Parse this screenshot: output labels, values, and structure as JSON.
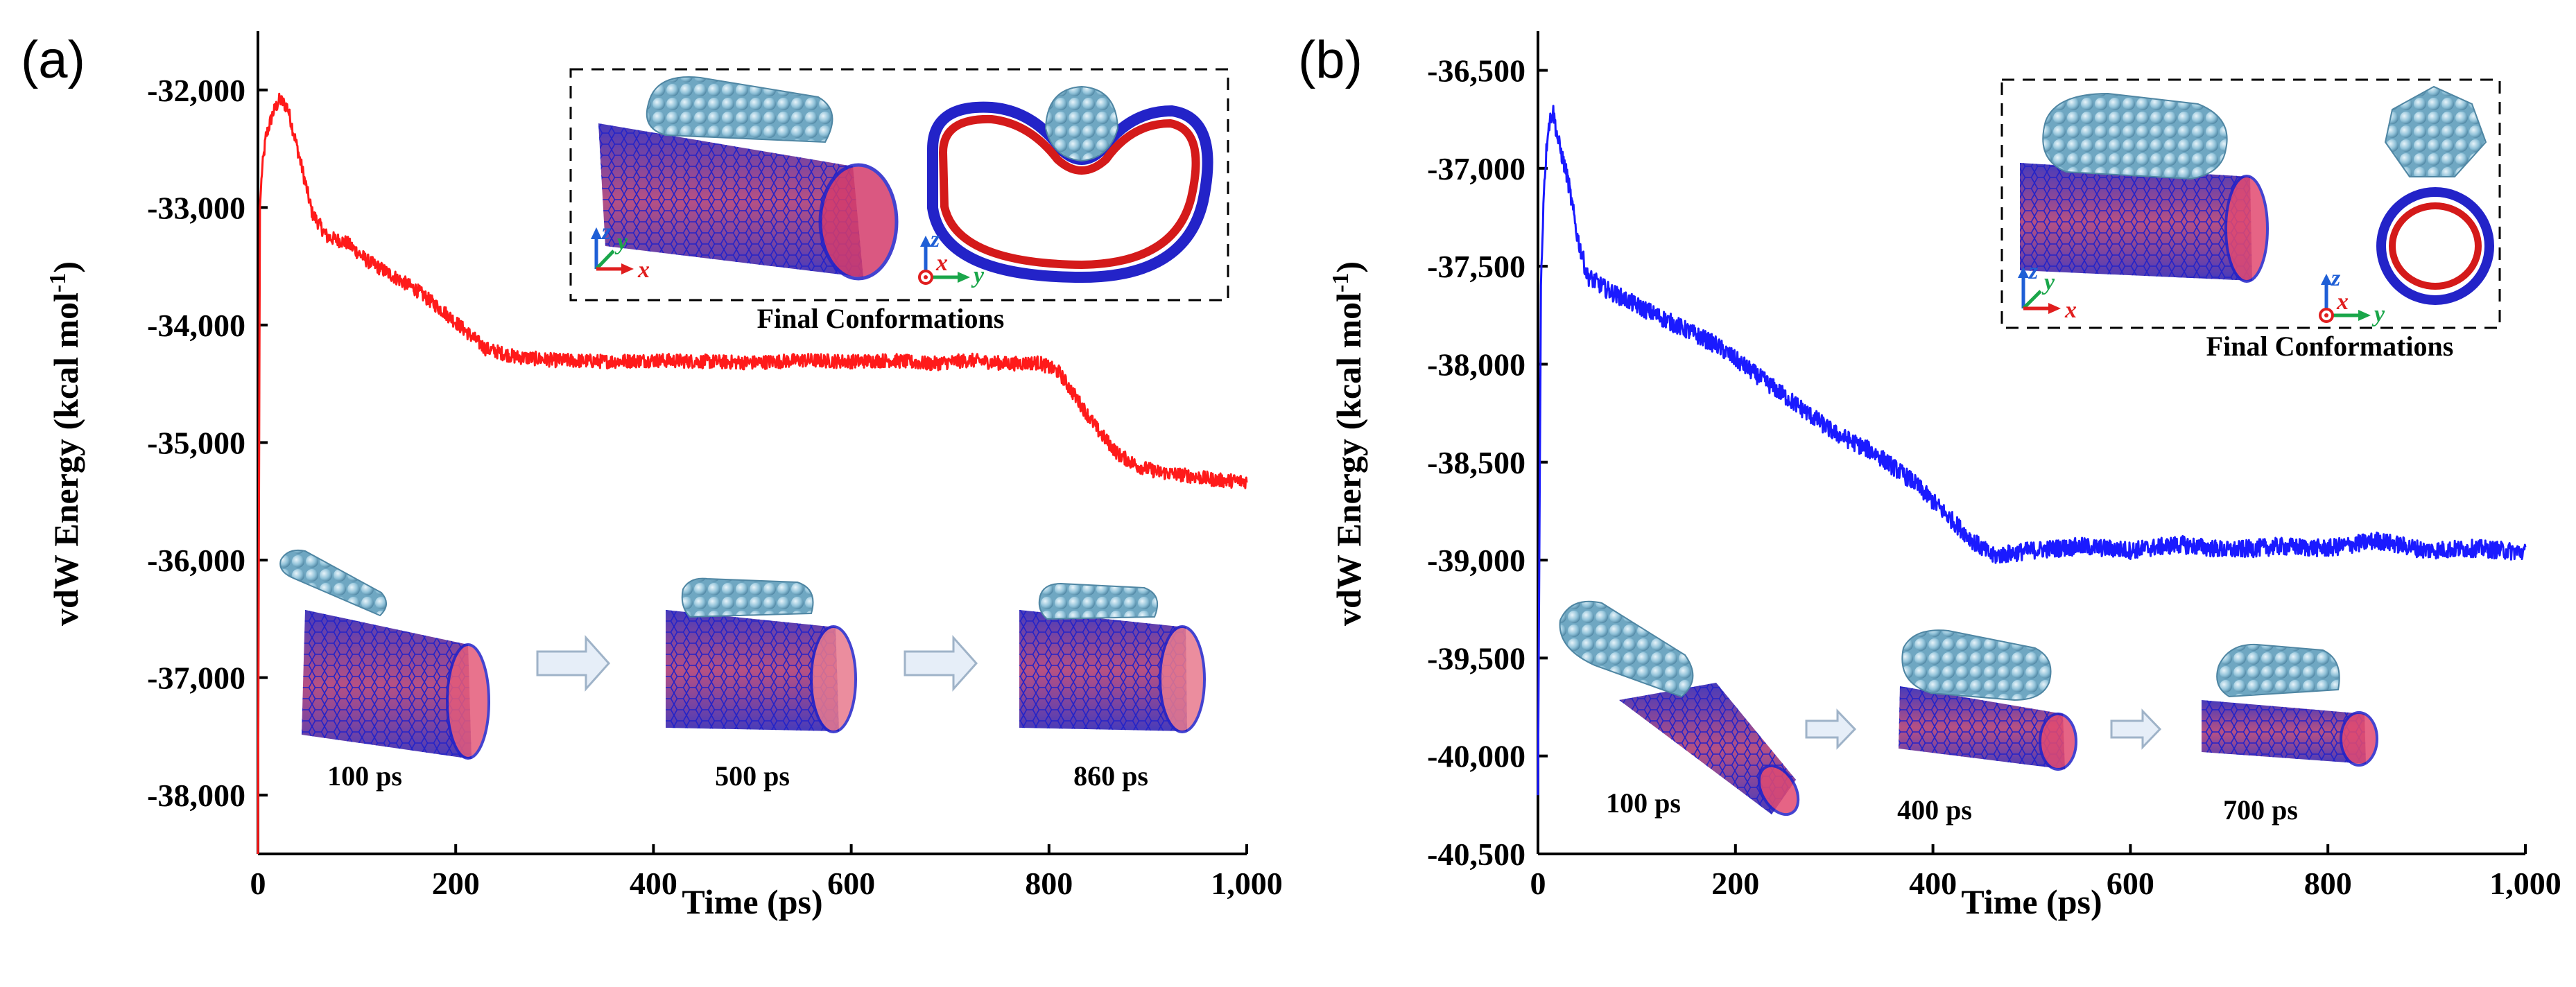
{
  "chart_data": [
    {
      "type": "line",
      "panel": "(a)",
      "xlabel": "Time (ps)",
      "ylabel": "vdW Energy (kcal mol",
      "ylabel_sup": "-1",
      "ylabel_close": ")",
      "xlim": [
        0,
        1000
      ],
      "ylim": [
        -38500,
        -31500
      ],
      "xticks": [
        0,
        200,
        400,
        600,
        800,
        1000
      ],
      "xtick_labels": [
        "0",
        "200",
        "400",
        "600",
        "800",
        "1,000"
      ],
      "yticks": [
        -38000,
        -37000,
        -36000,
        -35000,
        -34000,
        -33000,
        -32000
      ],
      "ytick_labels": [
        "-38,000",
        "-37,000",
        "-36,000",
        "-35,000",
        "-34,000",
        "-33,000",
        "-32,000"
      ],
      "series": [
        {
          "name": "vdW energy",
          "color": "#ff1a1a",
          "noise": 60,
          "x": [
            0,
            2,
            4,
            8,
            15,
            22,
            30,
            40,
            55,
            70,
            90,
            110,
            130,
            160,
            190,
            210,
            230,
            260,
            300,
            350,
            400,
            450,
            500,
            550,
            600,
            640,
            680,
            720,
            760,
            790,
            810,
            830,
            850,
            870,
            890,
            910,
            940,
            970,
            1000
          ],
          "y": [
            -38500,
            -33000,
            -32700,
            -32400,
            -32200,
            -32080,
            -32150,
            -32500,
            -33050,
            -33250,
            -33300,
            -33450,
            -33550,
            -33700,
            -33900,
            -34050,
            -34200,
            -34270,
            -34300,
            -34310,
            -34300,
            -34310,
            -34320,
            -34300,
            -34310,
            -34300,
            -34330,
            -34300,
            -34330,
            -34320,
            -34400,
            -34650,
            -34900,
            -35100,
            -35200,
            -35250,
            -35280,
            -35320,
            -35330
          ]
        }
      ],
      "inset": {
        "caption": "Final Conformations",
        "axes_left": [
          "z",
          "y",
          "x"
        ],
        "axes_right": [
          "z",
          "x",
          "y"
        ]
      },
      "snapshots": [
        "100 ps",
        "500 ps",
        "860 ps"
      ]
    },
    {
      "type": "line",
      "panel": "(b)",
      "xlabel": "Time (ps)",
      "ylabel": "vdW Energy (kcal mol",
      "ylabel_sup": "-1",
      "ylabel_close": ")",
      "xlim": [
        0,
        1000
      ],
      "ylim": [
        -40500,
        -36300
      ],
      "xticks": [
        0,
        200,
        400,
        600,
        800,
        1000
      ],
      "xtick_labels": [
        "0",
        "200",
        "400",
        "600",
        "800",
        "1,000"
      ],
      "yticks": [
        -40500,
        -40000,
        -39500,
        -39000,
        -38500,
        -38000,
        -37500,
        -37000,
        -36500
      ],
      "ytick_labels": [
        "-40,500",
        "-40,000",
        "-39,500",
        "-39,000",
        "-38,500",
        "-38,000",
        "-37,500",
        "-37,000",
        "-36,500"
      ],
      "series": [
        {
          "name": "vdW energy",
          "color": "#1a1aff",
          "noise": 45,
          "x": [
            0,
            3,
            6,
            10,
            15,
            20,
            30,
            40,
            50,
            70,
            100,
            140,
            180,
            220,
            260,
            300,
            340,
            380,
            420,
            440,
            460,
            500,
            550,
            600,
            650,
            700,
            750,
            800,
            850,
            900,
            950,
            1000
          ],
          "y": [
            -40200,
            -37600,
            -37100,
            -36800,
            -36700,
            -36850,
            -37050,
            -37350,
            -37550,
            -37620,
            -37700,
            -37800,
            -37900,
            -38050,
            -38200,
            -38350,
            -38450,
            -38600,
            -38800,
            -38900,
            -38980,
            -38950,
            -38930,
            -38950,
            -38920,
            -38950,
            -38930,
            -38940,
            -38900,
            -38950,
            -38940,
            -38960
          ]
        }
      ],
      "inset": {
        "caption": "Final Conformations",
        "axes_left": [
          "z",
          "y",
          "x"
        ],
        "axes_right": [
          "z",
          "x",
          "y"
        ]
      },
      "snapshots": [
        "100 ps",
        "400 ps",
        "700 ps"
      ]
    }
  ],
  "colors": {
    "tube_mesh": "#2a2acc",
    "tube_core": "#cc1a1a",
    "cluster": "#8fc1d8",
    "arrow_fill": "#e6eef8",
    "axis_z": "#1f5fd6",
    "axis_y": "#1aa64a",
    "axis_x": "#e01e1e"
  }
}
